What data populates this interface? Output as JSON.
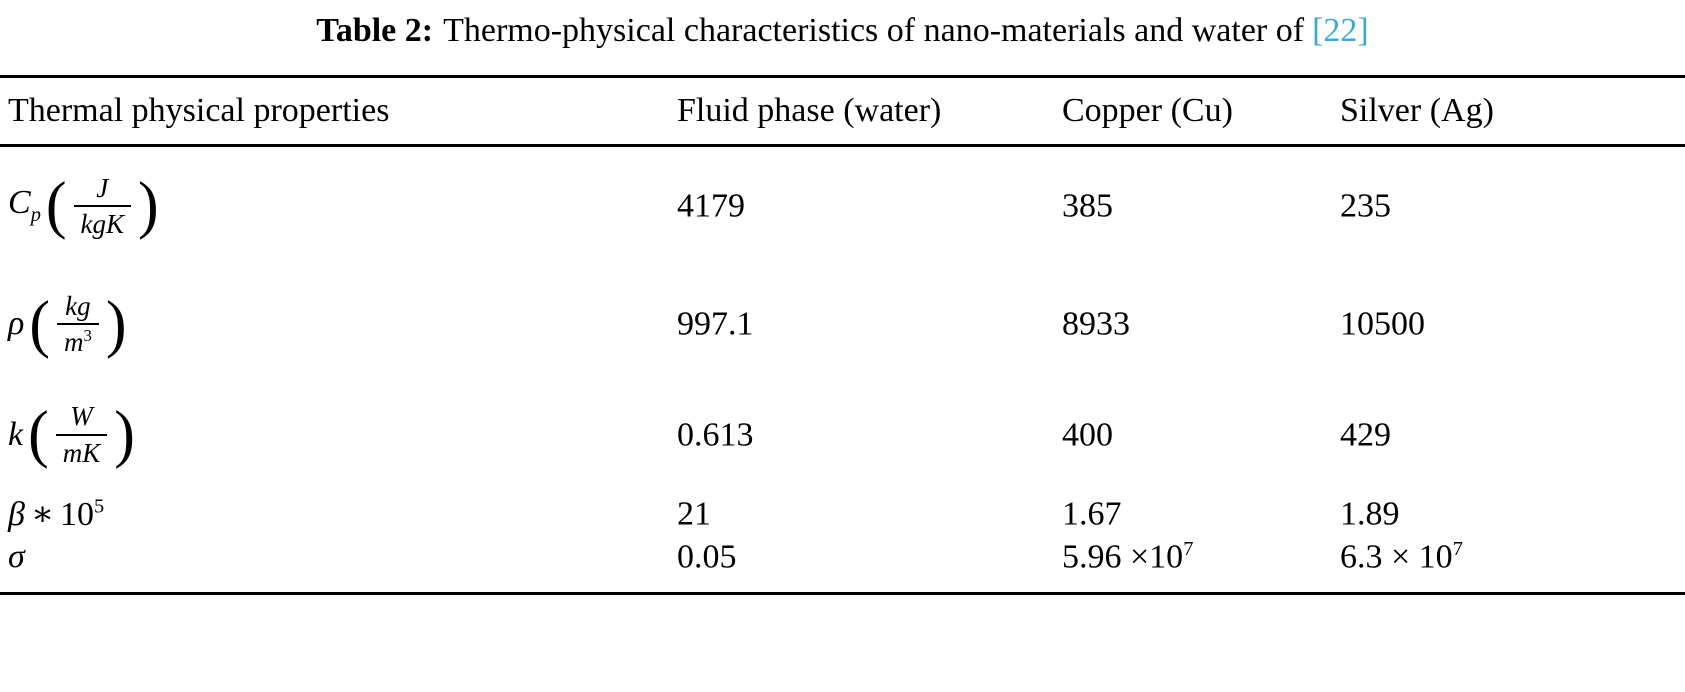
{
  "caption": {
    "label": "Table 2:",
    "text": "Thermo-physical characteristics of nano-materials and water of",
    "citation": "[22]",
    "citation_color": "#3da8d8"
  },
  "table": {
    "headers": [
      "Thermal physical properties",
      "Fluid phase (water)",
      "Copper (Cu)",
      "Silver (Ag)"
    ],
    "rows": [
      {
        "id": "cp",
        "symbol": "C",
        "symbol_sub": "p",
        "frac_num": "J",
        "frac_den": "kgK",
        "values": [
          {
            "base": "4179"
          },
          {
            "base": "385"
          },
          {
            "base": "235"
          }
        ]
      },
      {
        "id": "rho",
        "symbol": "ρ",
        "frac_num": "kg",
        "frac_den_base": "m",
        "frac_den_sup": "3",
        "values": [
          {
            "base": "997.1"
          },
          {
            "base": "8933"
          },
          {
            "base": "10500"
          }
        ]
      },
      {
        "id": "k",
        "symbol": "k",
        "frac_num": "W",
        "frac_den": "mK",
        "values": [
          {
            "base": "0.613"
          },
          {
            "base": "400"
          },
          {
            "base": "429"
          }
        ]
      },
      {
        "id": "beta",
        "symbol": "β",
        "operator": "∗",
        "base": "10",
        "sup": "5",
        "values": [
          {
            "base": "21"
          },
          {
            "base": "1.67"
          },
          {
            "base": "1.89"
          }
        ]
      },
      {
        "id": "sigma",
        "symbol": "σ",
        "values": [
          {
            "base": "0.05"
          },
          {
            "base": "5.96 ×10",
            "sup": "7"
          },
          {
            "base": "6.3 × 10",
            "sup": "7"
          }
        ]
      }
    ]
  }
}
